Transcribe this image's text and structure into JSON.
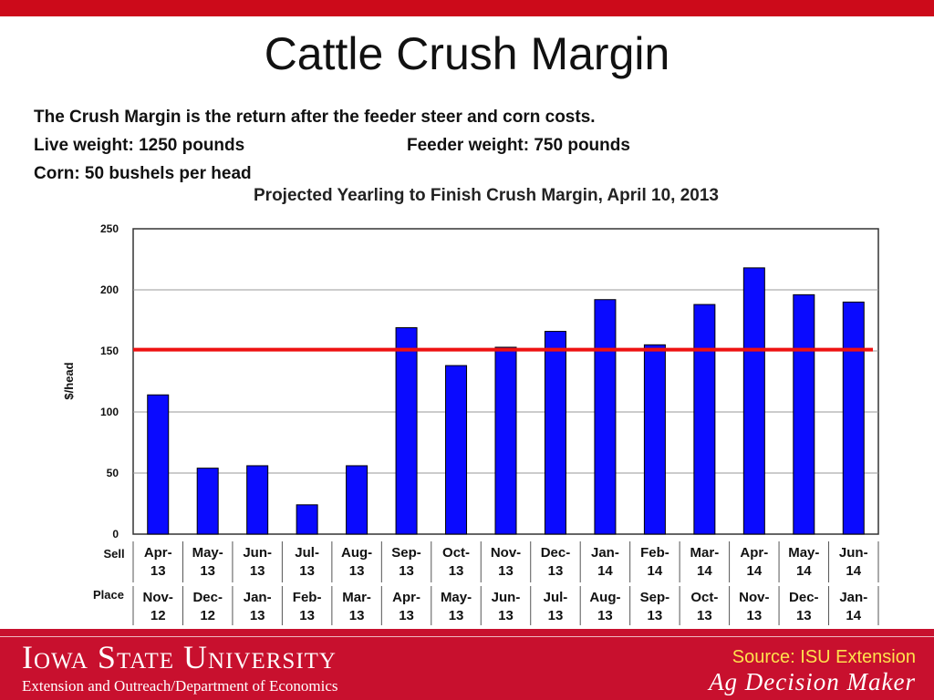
{
  "slide": {
    "title": "Cattle Crush Margin",
    "description_1": "The Crush Margin is the return after the feeder steer and corn costs.",
    "live_weight": "Live weight:  1250 pounds",
    "feeder_weight": "Feeder weight:  750 pounds",
    "corn": "Corn:  50 bushels per head"
  },
  "chart_data": {
    "type": "bar",
    "title": "Projected Yearling to Finish Crush Margin, April 10, 2013",
    "ylabel": "$/head",
    "ylim": [
      0,
      250
    ],
    "yticks": [
      0,
      50,
      100,
      150,
      200,
      250
    ],
    "row_labels": [
      "Sell",
      "Place"
    ],
    "categories_sell": [
      "Apr-13",
      "May-13",
      "Jun-13",
      "Jul-13",
      "Aug-13",
      "Sep-13",
      "Oct-13",
      "Nov-13",
      "Dec-13",
      "Jan-14",
      "Feb-14",
      "Mar-14",
      "Apr-14",
      "May-14",
      "Jun-14"
    ],
    "categories_place": [
      "Nov-12",
      "Dec-12",
      "Jan-13",
      "Feb-13",
      "Mar-13",
      "Apr-13",
      "May-13",
      "Jun-13",
      "Jul-13",
      "Aug-13",
      "Sep-13",
      "Oct-13",
      "Nov-13",
      "Dec-13",
      "Jan-14"
    ],
    "values": [
      114,
      54,
      56,
      24,
      56,
      169,
      138,
      153,
      166,
      192,
      155,
      188,
      218,
      196,
      190
    ],
    "reference_line": 151,
    "bar_color": "#0a0aff",
    "reference_line_color": "#ee1111",
    "grid": true
  },
  "footer": {
    "university": "Iowa State University",
    "department": "Extension and Outreach/Department of Economics",
    "source": "Source: ISU Extension",
    "program": "Ag Decision Maker"
  },
  "colors": {
    "top_bar": "#cc0a1a",
    "footer_bg": "#c8102e",
    "source_text": "#ffe14d"
  }
}
